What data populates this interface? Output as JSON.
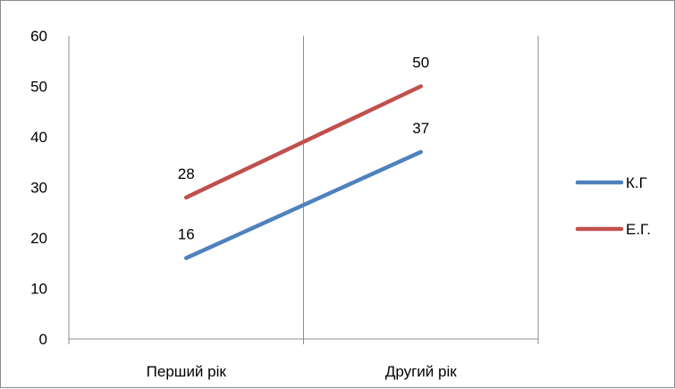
{
  "chart_data": {
    "type": "line",
    "categories": [
      "Перший рік",
      "Другий рік"
    ],
    "series": [
      {
        "name": "К.Г",
        "values": [
          16,
          37
        ],
        "color": "#4f81bd"
      },
      {
        "name": "Е.Г.",
        "values": [
          28,
          50
        ],
        "color": "#c0504d"
      }
    ],
    "ylim": [
      0,
      60
    ],
    "yticks": [
      0,
      10,
      20,
      30,
      40,
      50,
      60
    ],
    "grid": "vertical category gridlines",
    "legend_position": "right",
    "data_labels": true
  }
}
